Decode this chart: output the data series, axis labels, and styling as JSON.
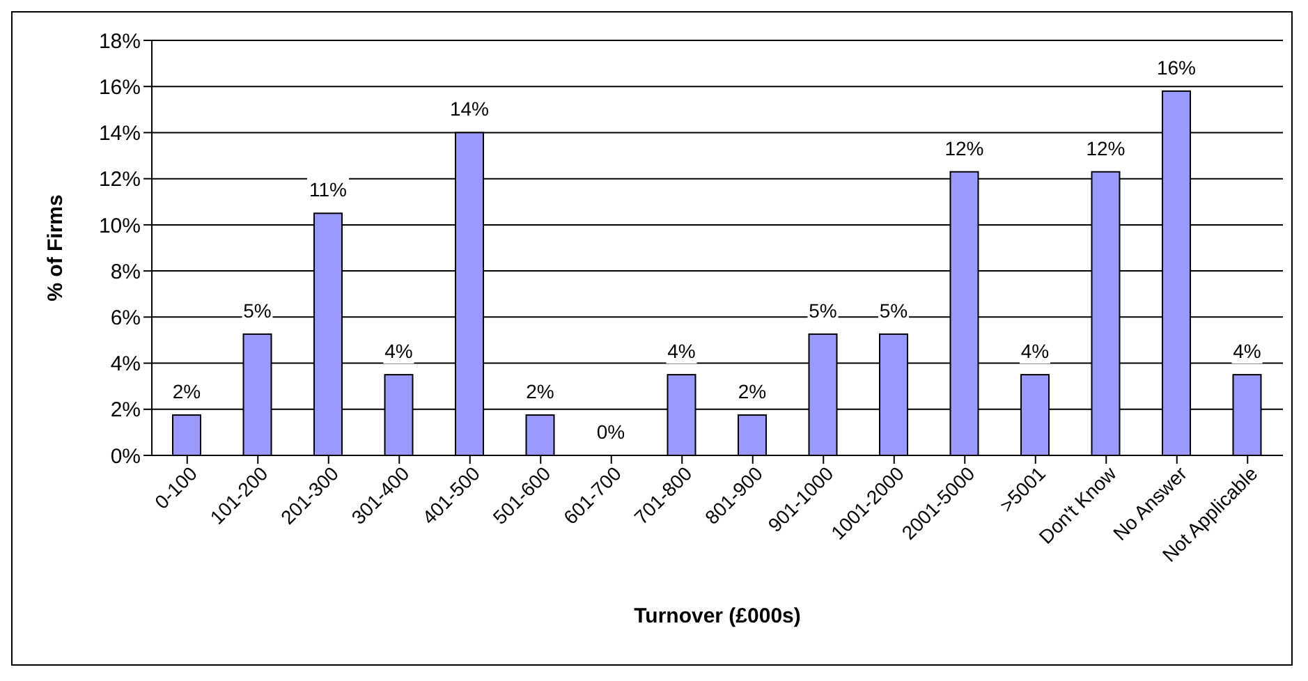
{
  "chart_data": {
    "type": "bar",
    "xlabel": "Turnover (£000s)",
    "ylabel": "% of Firms",
    "categories": [
      "0-100",
      "101-200",
      "201-300",
      "301-400",
      "401-500",
      "501-600",
      "601-700",
      "701-800",
      "801-900",
      "901-1000",
      "1001-2000",
      "2001-5000",
      ">5001",
      "Don't Know",
      "No Answer",
      "Not Applicable"
    ],
    "values": [
      1.75,
      5.26,
      10.5,
      3.5,
      14.0,
      1.75,
      0,
      3.5,
      1.75,
      5.26,
      5.26,
      12.3,
      3.5,
      12.3,
      15.8,
      3.5
    ],
    "value_labels": [
      "2%",
      "5%",
      "11%",
      "4%",
      "14%",
      "2%",
      "0%",
      "4%",
      "2%",
      "5%",
      "5%",
      "12%",
      "4%",
      "12%",
      "16%",
      "4%"
    ],
    "color": "#9999ff",
    "ylim": [
      0,
      18
    ],
    "yticks": [
      {
        "value": 0,
        "label": "0%"
      },
      {
        "value": 2,
        "label": "2%"
      },
      {
        "value": 4,
        "label": "4%"
      },
      {
        "value": 6,
        "label": "6%"
      },
      {
        "value": 8,
        "label": "8%"
      },
      {
        "value": 10,
        "label": "10%"
      },
      {
        "value": 12,
        "label": "12%"
      },
      {
        "value": 14,
        "label": "14%"
      },
      {
        "value": 16,
        "label": "16%"
      },
      {
        "value": 18,
        "label": "18%"
      }
    ],
    "grid": "y"
  }
}
